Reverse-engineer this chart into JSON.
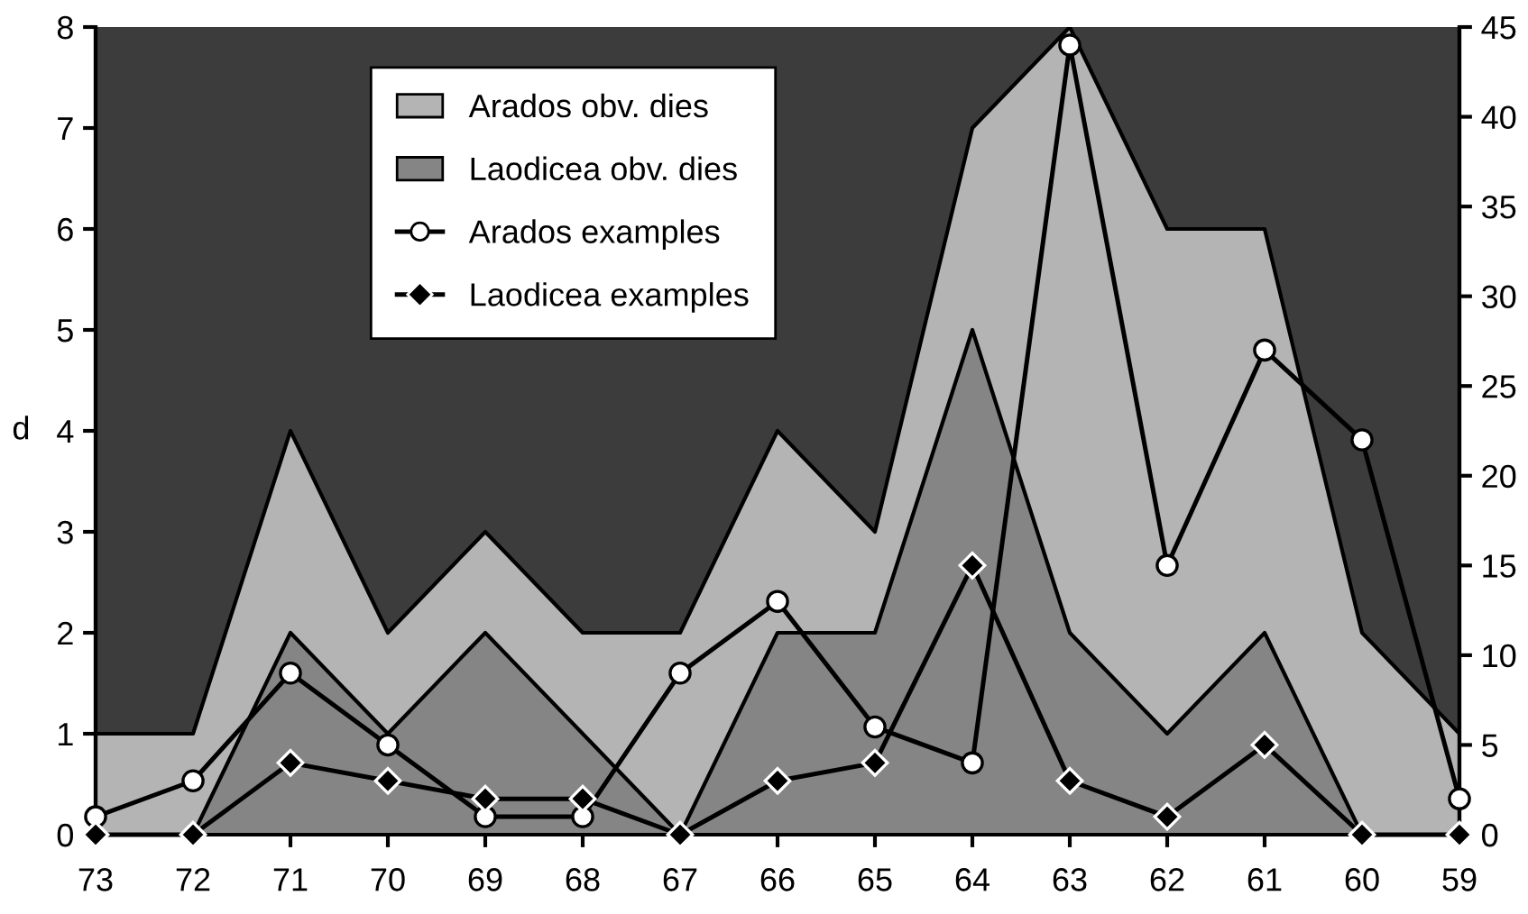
{
  "chart_data": {
    "type": "area",
    "ylabel": "d",
    "categories": [
      "73",
      "72",
      "71",
      "70",
      "69",
      "68",
      "67",
      "66",
      "65",
      "64",
      "63",
      "62",
      "61",
      "60",
      "59"
    ],
    "series": [
      {
        "name": "Arados obv. dies",
        "color": "#b4b4b4",
        "values": [
          1,
          1,
          4,
          2,
          3,
          2,
          2,
          4,
          3,
          7,
          8,
          6,
          6,
          2,
          1
        ]
      },
      {
        "name": "Laodicea obv. dies",
        "color": "#858585",
        "values": [
          0,
          0,
          2,
          1,
          2,
          1,
          0,
          2,
          2,
          5,
          2,
          1,
          2,
          0,
          0
        ]
      },
      {
        "name": "Arados examples",
        "type": "line",
        "axis": "y2",
        "marker": "circle",
        "color": "#ffffff",
        "values": [
          1,
          3,
          9,
          5,
          1,
          1,
          9,
          13,
          6,
          4,
          44,
          15,
          27,
          22,
          2
        ]
      },
      {
        "name": "Laodicea examples",
        "type": "line",
        "axis": "y2",
        "marker": "diamond",
        "color": "#000000",
        "values": [
          0,
          0,
          4,
          3,
          2,
          2,
          0,
          3,
          4,
          15,
          3,
          1,
          5,
          0,
          0
        ]
      }
    ],
    "ylim": [
      0,
      8
    ],
    "yticks": [
      0,
      1,
      2,
      3,
      4,
      5,
      6,
      7,
      8
    ],
    "y2lim": [
      0,
      45
    ],
    "y2ticks": [
      0,
      5,
      10,
      15,
      20,
      25,
      30,
      35,
      40,
      45
    ],
    "legend": "top left",
    "grid": false
  }
}
